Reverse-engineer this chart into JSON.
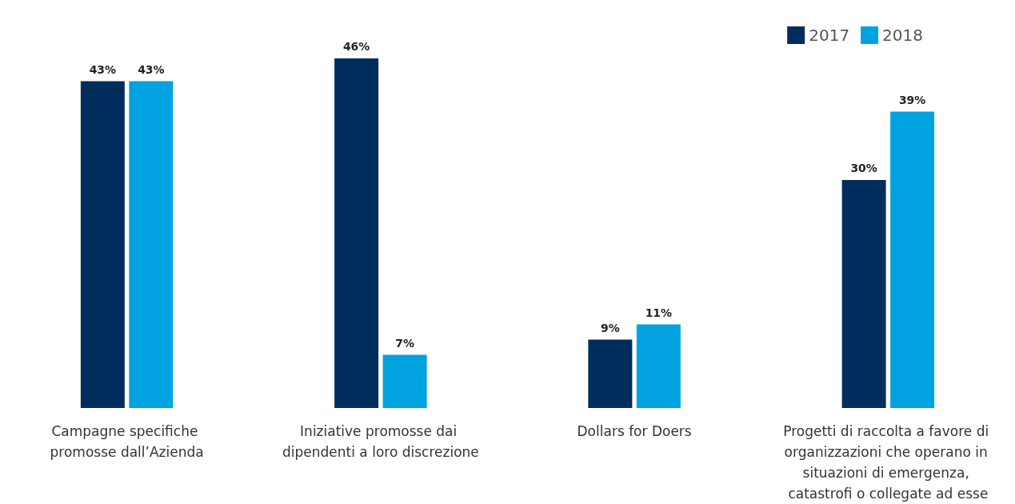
{
  "chart_data": {
    "type": "bar",
    "categories": [
      "Campagne specifiche promosse dall’Azienda",
      "Iniziative promosse dai dipendenti a loro discrezione",
      "Dollars for Doers",
      "Progetti di raccolta a favore di organizzazioni che operano in situazioni di emergenza, catastrofi o collegate ad esse"
    ],
    "series": [
      {
        "name": "2017",
        "color": "#002d5c",
        "values": [
          43,
          46,
          9,
          30
        ],
        "value_labels": [
          "43%",
          "46%",
          "9%",
          "30%"
        ]
      },
      {
        "name": "2018",
        "color": "#00a3e0",
        "values": [
          43,
          7,
          11,
          39
        ],
        "value_labels": [
          "43%",
          "7%",
          "11%",
          "39%"
        ]
      }
    ],
    "legend": "top right",
    "grid": false,
    "tick_labels": "x"
  }
}
